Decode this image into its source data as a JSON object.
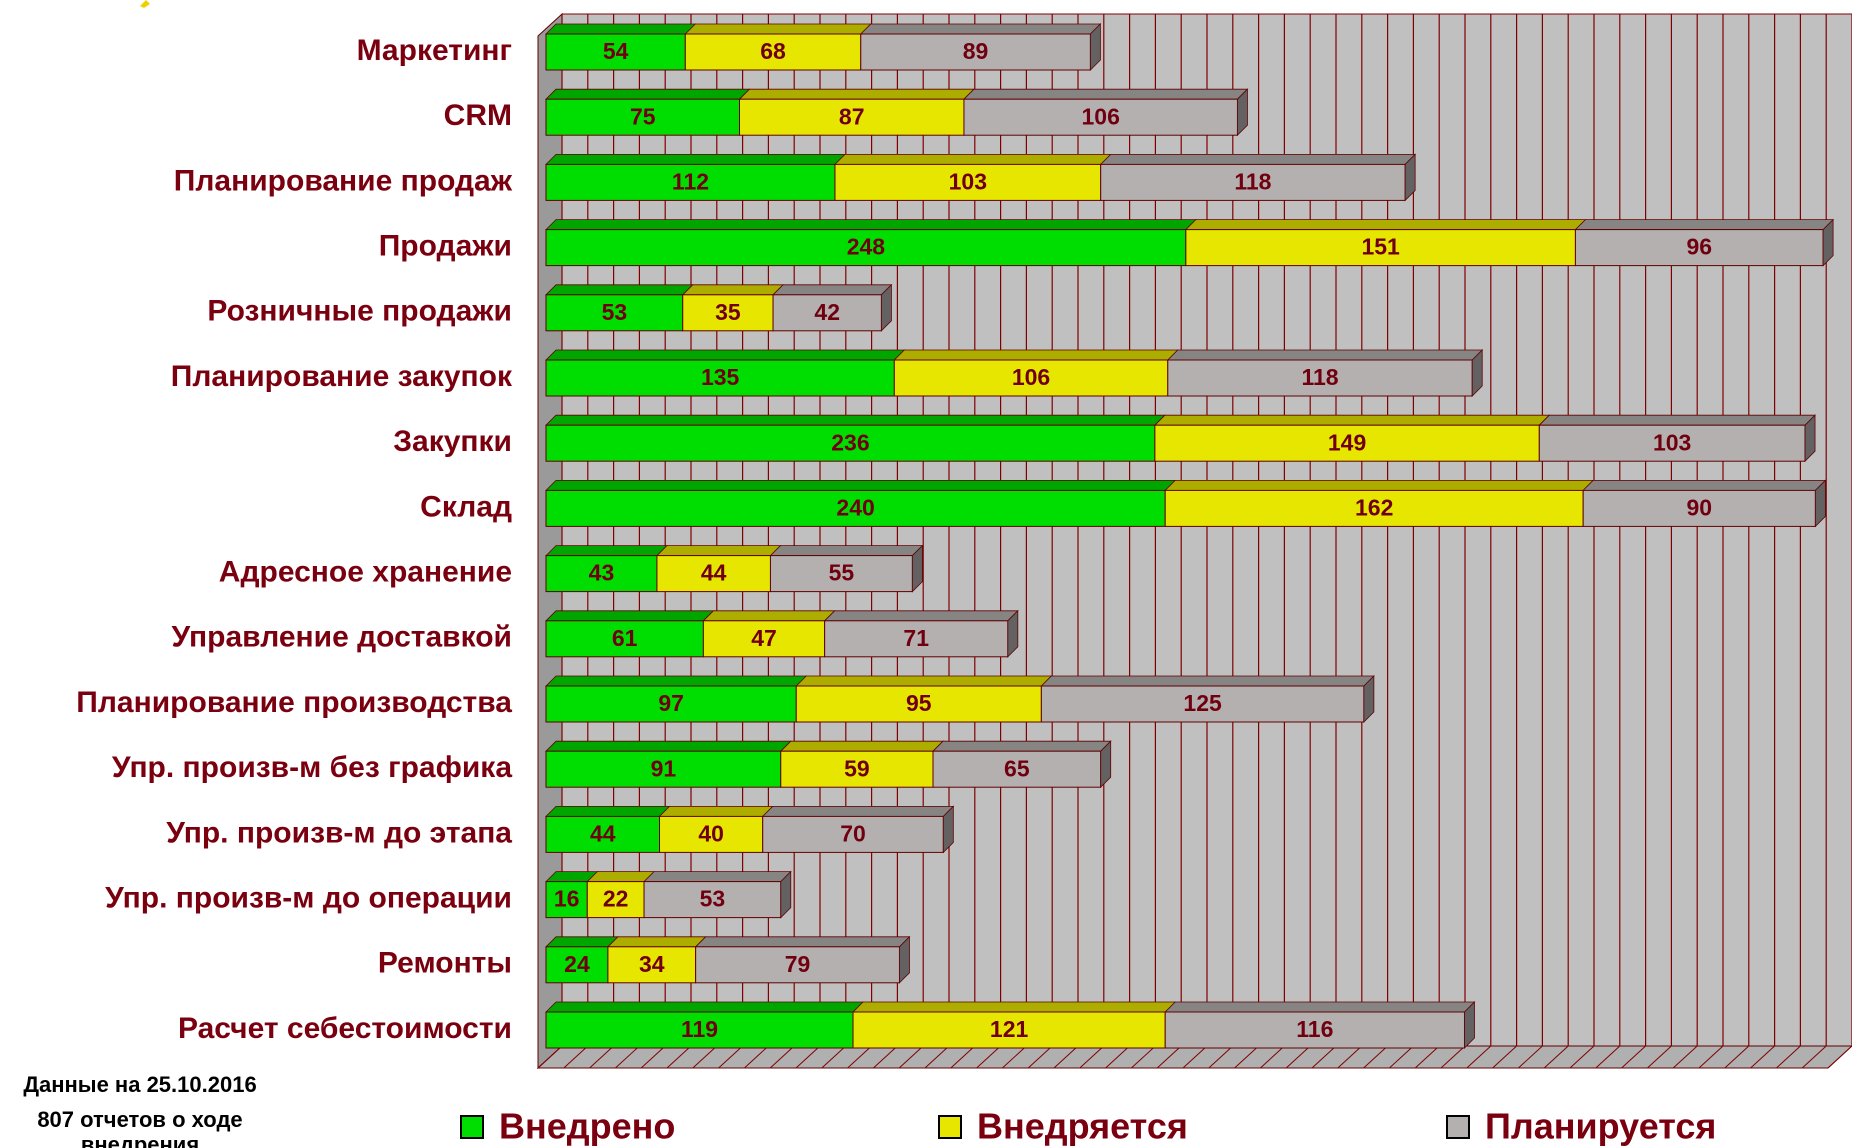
{
  "chart_data": {
    "type": "stacked_bar_horizontal_3d",
    "categories": [
      "Маркетинг",
      "CRM",
      "Планирование продаж",
      "Продажи",
      "Розничные продажи",
      "Планирование закупок",
      "Закупки",
      "Склад",
      "Адресное хранение",
      "Управление доставкой",
      "Планирование производства",
      "Упр. произв-м без графика",
      "Упр. произв-м до этапа",
      "Упр. произв-м до операции",
      "Ремонты",
      "Расчет себестоимости"
    ],
    "series": [
      {
        "name": "Внедрено",
        "color": "#00dd00",
        "values": [
          54,
          75,
          112,
          248,
          53,
          135,
          236,
          240,
          43,
          61,
          97,
          91,
          44,
          16,
          24,
          119
        ]
      },
      {
        "name": "Внедряется",
        "color": "#e6e600",
        "values": [
          68,
          87,
          103,
          151,
          35,
          106,
          149,
          162,
          44,
          47,
          95,
          59,
          40,
          22,
          34,
          121
        ]
      },
      {
        "name": "Планируется",
        "color": "#b4b0b0",
        "values": [
          89,
          106,
          118,
          96,
          42,
          118,
          103,
          90,
          55,
          71,
          125,
          65,
          70,
          53,
          79,
          116
        ]
      }
    ],
    "xlim": [
      0,
      500
    ],
    "xticks": [
      0,
      10,
      20,
      30,
      40,
      50,
      60,
      70,
      80,
      90,
      100,
      110,
      120,
      130,
      140,
      150,
      160,
      170,
      180,
      190,
      200,
      210,
      220,
      230,
      240,
      250,
      260,
      270,
      280,
      290,
      300,
      310,
      320,
      330,
      340,
      350,
      360,
      370,
      380,
      390,
      400,
      410,
      420,
      430,
      440,
      450,
      460,
      470,
      480,
      490,
      500
    ],
    "grid": true,
    "legend": "bottom",
    "annotations": [
      "Данные на 25.10.2016",
      "807 отчетов о ходе",
      "внедрения"
    ]
  }
}
